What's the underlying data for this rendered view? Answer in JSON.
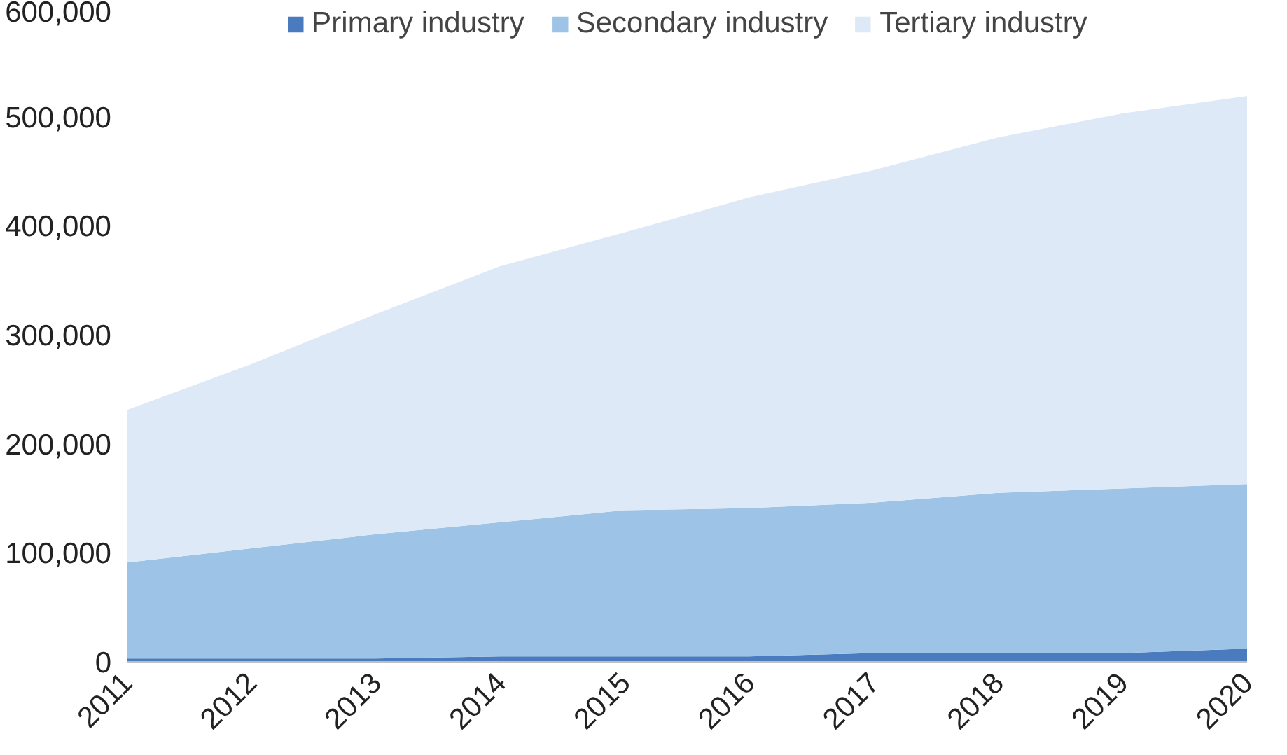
{
  "chart_data": {
    "type": "area",
    "stacked": true,
    "categories": [
      "2011",
      "2012",
      "2013",
      "2014",
      "2015",
      "2016",
      "2017",
      "2018",
      "2019",
      "2020"
    ],
    "series": [
      {
        "name": "Primary industry",
        "color": "#4a7bbf",
        "values": [
          3000,
          3000,
          3000,
          5000,
          5000,
          5000,
          8000,
          8000,
          8000,
          12000
        ]
      },
      {
        "name": "Secondary industry",
        "color": "#9dc3e6",
        "values": [
          88000,
          101000,
          114000,
          123000,
          134000,
          136000,
          138000,
          147000,
          151000,
          151000
        ]
      },
      {
        "name": "Tertiary industry",
        "color": "#dde9f6",
        "values": [
          140000,
          169000,
          202000,
          235000,
          255000,
          285000,
          305000,
          326000,
          344000,
          356000
        ]
      }
    ],
    "ylim": [
      0,
      600000
    ],
    "yticks": [
      {
        "value": 0,
        "label": "0"
      },
      {
        "value": 100000,
        "label": "100,000"
      },
      {
        "value": 200000,
        "label": "200,000"
      },
      {
        "value": 300000,
        "label": "300,000"
      },
      {
        "value": 400000,
        "label": "400,000"
      },
      {
        "value": 500000,
        "label": "500,000"
      },
      {
        "value": 600000,
        "label": "600,000"
      }
    ],
    "grid": false,
    "legend": "top"
  }
}
